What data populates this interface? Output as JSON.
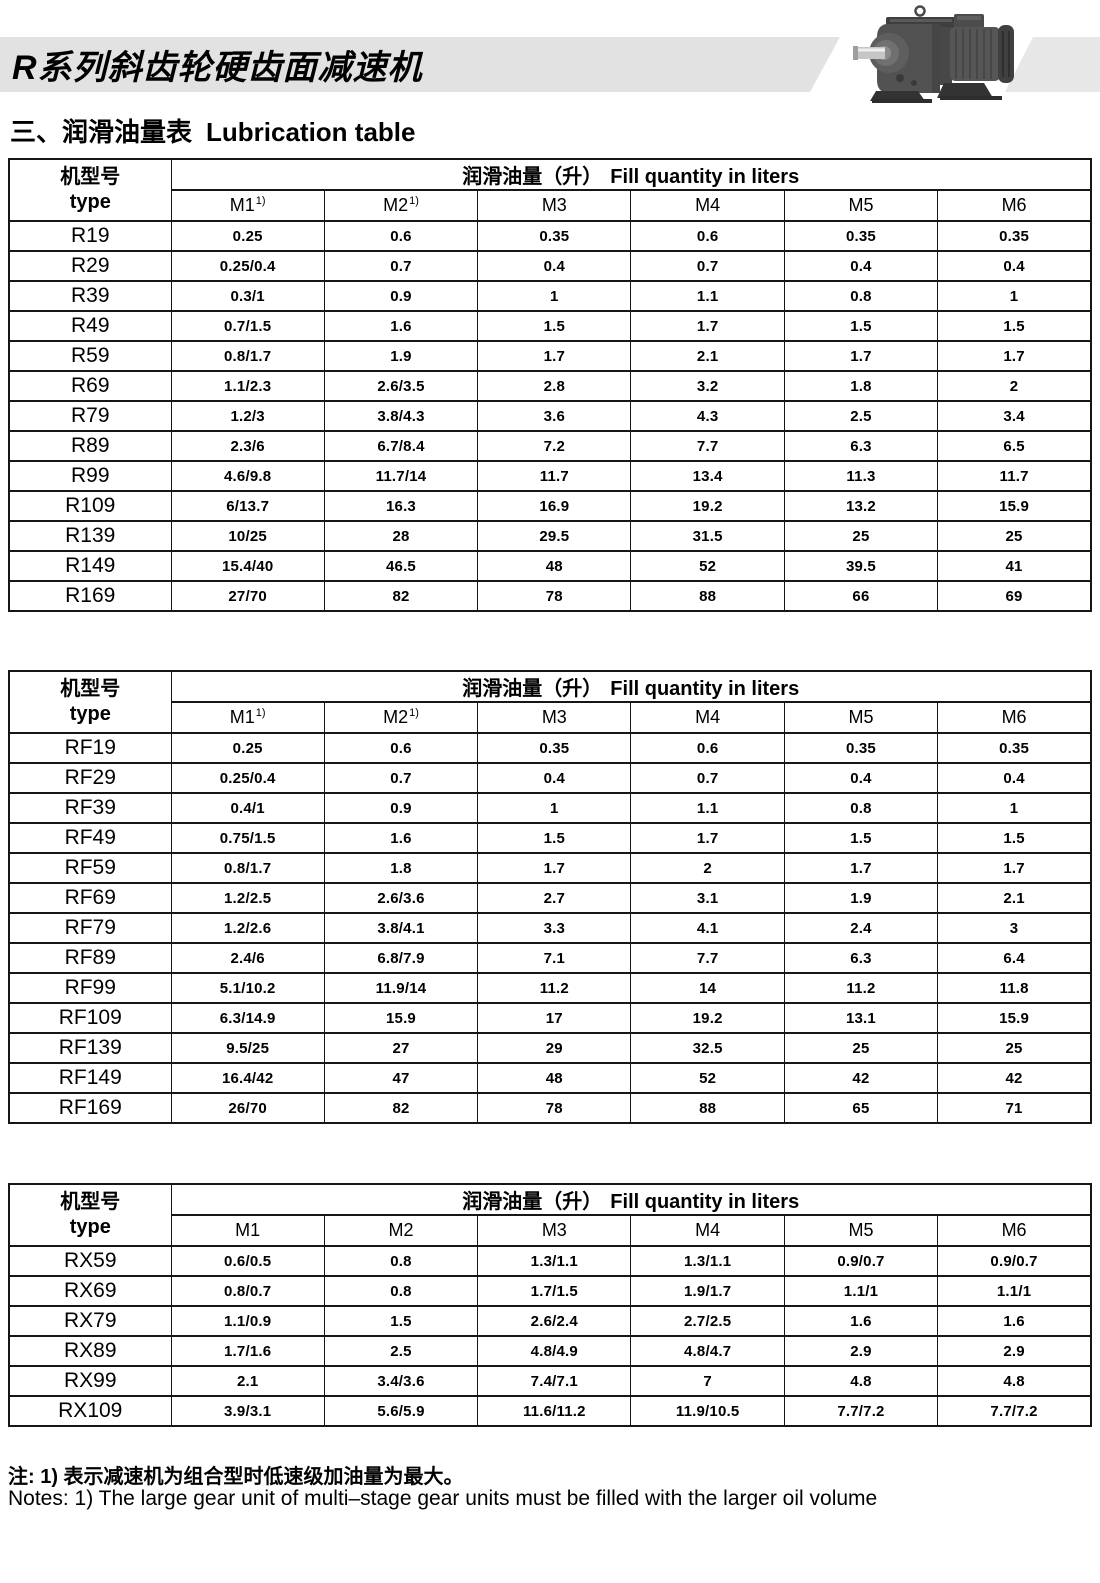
{
  "header": {
    "banner_title": "R系列斜齿轮硬齿面减速机"
  },
  "section": {
    "title_zh": "三、润滑油量表",
    "title_en": "Lubrication table"
  },
  "table_common": {
    "type_zh": "机型号",
    "type_en": "type",
    "fill_zh": "润滑油量（升）",
    "fill_en": "Fill quantity in liters"
  },
  "tables": [
    {
      "name": "R-series",
      "columns": [
        {
          "label": "M1",
          "sup": "1)"
        },
        {
          "label": "M2",
          "sup": "1)"
        },
        {
          "label": "M3",
          "sup": ""
        },
        {
          "label": "M4",
          "sup": ""
        },
        {
          "label": "M5",
          "sup": ""
        },
        {
          "label": "M6",
          "sup": ""
        }
      ],
      "rows": [
        {
          "type": "R19",
          "values": [
            "0.25",
            "0.6",
            "0.35",
            "0.6",
            "0.35",
            "0.35"
          ]
        },
        {
          "type": "R29",
          "values": [
            "0.25/0.4",
            "0.7",
            "0.4",
            "0.7",
            "0.4",
            "0.4"
          ]
        },
        {
          "type": "R39",
          "values": [
            "0.3/1",
            "0.9",
            "1",
            "1.1",
            "0.8",
            "1"
          ]
        },
        {
          "type": "R49",
          "values": [
            "0.7/1.5",
            "1.6",
            "1.5",
            "1.7",
            "1.5",
            "1.5"
          ]
        },
        {
          "type": "R59",
          "values": [
            "0.8/1.7",
            "1.9",
            "1.7",
            "2.1",
            "1.7",
            "1.7"
          ]
        },
        {
          "type": "R69",
          "values": [
            "1.1/2.3",
            "2.6/3.5",
            "2.8",
            "3.2",
            "1.8",
            "2"
          ]
        },
        {
          "type": "R79",
          "values": [
            "1.2/3",
            "3.8/4.3",
            "3.6",
            "4.3",
            "2.5",
            "3.4"
          ]
        },
        {
          "type": "R89",
          "values": [
            "2.3/6",
            "6.7/8.4",
            "7.2",
            "7.7",
            "6.3",
            "6.5"
          ]
        },
        {
          "type": "R99",
          "values": [
            "4.6/9.8",
            "11.7/14",
            "11.7",
            "13.4",
            "11.3",
            "11.7"
          ]
        },
        {
          "type": "R109",
          "values": [
            "6/13.7",
            "16.3",
            "16.9",
            "19.2",
            "13.2",
            "15.9"
          ]
        },
        {
          "type": "R139",
          "values": [
            "10/25",
            "28",
            "29.5",
            "31.5",
            "25",
            "25"
          ]
        },
        {
          "type": "R149",
          "values": [
            "15.4/40",
            "46.5",
            "48",
            "52",
            "39.5",
            "41"
          ]
        },
        {
          "type": "R169",
          "values": [
            "27/70",
            "82",
            "78",
            "88",
            "66",
            "69"
          ]
        }
      ]
    },
    {
      "name": "RF-series",
      "columns": [
        {
          "label": "M1",
          "sup": "1)"
        },
        {
          "label": "M2",
          "sup": "1)"
        },
        {
          "label": "M3",
          "sup": ""
        },
        {
          "label": "M4",
          "sup": ""
        },
        {
          "label": "M5",
          "sup": ""
        },
        {
          "label": "M6",
          "sup": ""
        }
      ],
      "rows": [
        {
          "type": "RF19",
          "values": [
            "0.25",
            "0.6",
            "0.35",
            "0.6",
            "0.35",
            "0.35"
          ]
        },
        {
          "type": "RF29",
          "values": [
            "0.25/0.4",
            "0.7",
            "0.4",
            "0.7",
            "0.4",
            "0.4"
          ]
        },
        {
          "type": "RF39",
          "values": [
            "0.4/1",
            "0.9",
            "1",
            "1.1",
            "0.8",
            "1"
          ]
        },
        {
          "type": "RF49",
          "values": [
            "0.75/1.5",
            "1.6",
            "1.5",
            "1.7",
            "1.5",
            "1.5"
          ]
        },
        {
          "type": "RF59",
          "values": [
            "0.8/1.7",
            "1.8",
            "1.7",
            "2",
            "1.7",
            "1.7"
          ]
        },
        {
          "type": "RF69",
          "values": [
            "1.2/2.5",
            "2.6/3.6",
            "2.7",
            "3.1",
            "1.9",
            "2.1"
          ]
        },
        {
          "type": "RF79",
          "values": [
            "1.2/2.6",
            "3.8/4.1",
            "3.3",
            "4.1",
            "2.4",
            "3"
          ]
        },
        {
          "type": "RF89",
          "values": [
            "2.4/6",
            "6.8/7.9",
            "7.1",
            "7.7",
            "6.3",
            "6.4"
          ]
        },
        {
          "type": "RF99",
          "values": [
            "5.1/10.2",
            "11.9/14",
            "11.2",
            "14",
            "11.2",
            "11.8"
          ]
        },
        {
          "type": "RF109",
          "values": [
            "6.3/14.9",
            "15.9",
            "17",
            "19.2",
            "13.1",
            "15.9"
          ]
        },
        {
          "type": "RF139",
          "values": [
            "9.5/25",
            "27",
            "29",
            "32.5",
            "25",
            "25"
          ]
        },
        {
          "type": "RF149",
          "values": [
            "16.4/42",
            "47",
            "48",
            "52",
            "42",
            "42"
          ]
        },
        {
          "type": "RF169",
          "values": [
            "26/70",
            "82",
            "78",
            "88",
            "65",
            "71"
          ]
        }
      ]
    },
    {
      "name": "RX-series",
      "columns": [
        {
          "label": "M1",
          "sup": ""
        },
        {
          "label": "M2",
          "sup": ""
        },
        {
          "label": "M3",
          "sup": ""
        },
        {
          "label": "M4",
          "sup": ""
        },
        {
          "label": "M5",
          "sup": ""
        },
        {
          "label": "M6",
          "sup": ""
        }
      ],
      "rows": [
        {
          "type": "RX59",
          "values": [
            "0.6/0.5",
            "0.8",
            "1.3/1.1",
            "1.3/1.1",
            "0.9/0.7",
            "0.9/0.7"
          ]
        },
        {
          "type": "RX69",
          "values": [
            "0.8/0.7",
            "0.8",
            "1.7/1.5",
            "1.9/1.7",
            "1.1/1",
            "1.1/1"
          ]
        },
        {
          "type": "RX79",
          "values": [
            "1.1/0.9",
            "1.5",
            "2.6/2.4",
            "2.7/2.5",
            "1.6",
            "1.6"
          ]
        },
        {
          "type": "RX89",
          "values": [
            "1.7/1.6",
            "2.5",
            "4.8/4.9",
            "4.8/4.7",
            "2.9",
            "2.9"
          ]
        },
        {
          "type": "RX99",
          "values": [
            "2.1",
            "3.4/3.6",
            "7.4/7.1",
            "7",
            "4.8",
            "4.8"
          ]
        },
        {
          "type": "RX109",
          "values": [
            "3.9/3.1",
            "5.6/5.9",
            "11.6/11.2",
            "11.9/10.5",
            "7.7/7.2",
            "7.7/7.2"
          ]
        }
      ]
    }
  ],
  "notes": {
    "zh": "注: 1) 表示减速机为组合型时低速级加油量为最大。",
    "en": "Notes: 1) The large gear unit of multi–stage gear units must be filled with the larger oil volume"
  }
}
